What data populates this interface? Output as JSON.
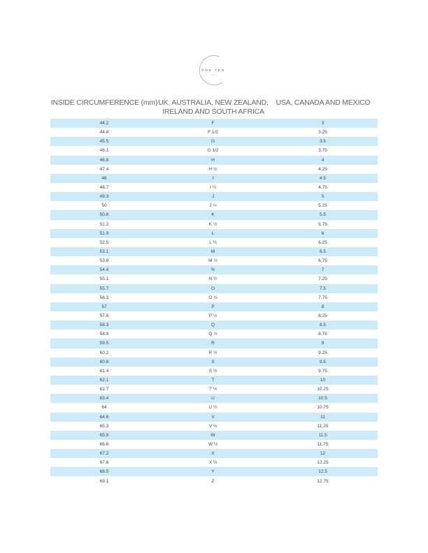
{
  "logo": {
    "text": "ONE TEN"
  },
  "headers": {
    "circumference": "INSIDE CIRCUMFERENCE (mm)",
    "uk_line1": "UK, AUSTRALIA, NEW ZEALAND,",
    "uk_line2": "IRELAND AND SOUTH AFRICA",
    "usa": "USA, CANADA AND MEXICO"
  },
  "row_color": "#cdeaf8",
  "rows": [
    [
      "44.2",
      "F",
      "3"
    ],
    [
      "44.8",
      "F 1/2",
      "3.25"
    ],
    [
      "45.5",
      "G",
      "3.5"
    ],
    [
      "46.1",
      "G 1/2",
      "3.75"
    ],
    [
      "46.8",
      "H",
      "4"
    ],
    [
      "47.4",
      "H ½",
      "4.25"
    ],
    [
      "48",
      "I",
      "4.5"
    ],
    [
      "48.7",
      "I ½",
      "4.75"
    ],
    [
      "49.3",
      "J",
      "5"
    ],
    [
      "50",
      "J ½",
      "5.25"
    ],
    [
      "50.6",
      "K",
      "5.5"
    ],
    [
      "51.2",
      "K ½",
      "5.75"
    ],
    [
      "51.9",
      "L",
      "6"
    ],
    [
      "52.5",
      "L ½",
      "6.25"
    ],
    [
      "53.1",
      "M",
      "6.5"
    ],
    [
      "53.8",
      "M ½",
      "6.75"
    ],
    [
      "54.4",
      "N",
      "7"
    ],
    [
      "55.1",
      "N ½",
      "7.25"
    ],
    [
      "55.7",
      "O",
      "7.5"
    ],
    [
      "56.3",
      "O ½",
      "7.75"
    ],
    [
      "57",
      "P",
      "8"
    ],
    [
      "57.6",
      "P ½",
      "8.25"
    ],
    [
      "58.3",
      "Q",
      "8.5"
    ],
    [
      "58.9",
      "Q ½",
      "8.75"
    ],
    [
      "59.5",
      "R",
      "9"
    ],
    [
      "60.2",
      "R ½",
      "9.25"
    ],
    [
      "60.8",
      "S",
      "9.5"
    ],
    [
      "61.4",
      "S ½",
      "9.75"
    ],
    [
      "62.1",
      "T",
      "10"
    ],
    [
      "62.7",
      "T ½",
      "10.25"
    ],
    [
      "63.4",
      "U",
      "10.5"
    ],
    [
      "64",
      "U ½",
      "10.75"
    ],
    [
      "64.6",
      "V",
      "11"
    ],
    [
      "65.3",
      "V ½",
      "11.25"
    ],
    [
      "65.9",
      "W",
      "11.5"
    ],
    [
      "66.6",
      "W ½",
      "11.75"
    ],
    [
      "67.2",
      "X",
      "12"
    ],
    [
      "67.8",
      "X ½",
      "12.25"
    ],
    [
      "68.5",
      "Y",
      "12.5"
    ],
    [
      "69.1",
      "Z",
      "12.75"
    ]
  ]
}
